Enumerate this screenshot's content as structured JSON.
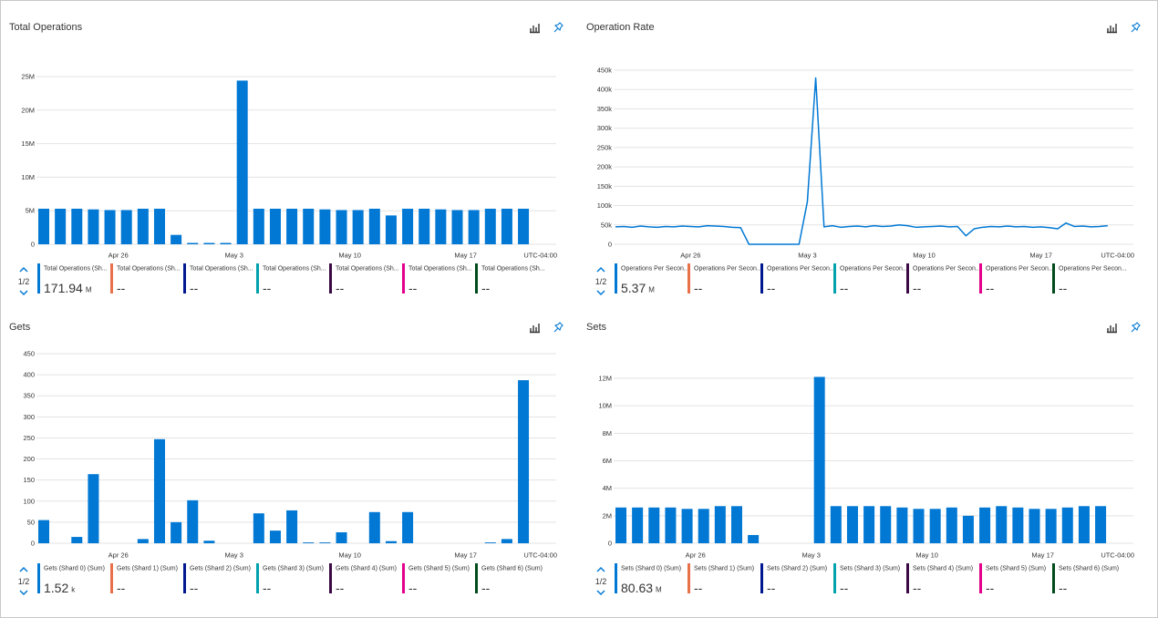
{
  "chart_data": [
    {
      "type": "bar",
      "title": "Total Operations",
      "timezone": "UTC-04:00",
      "legend_page": "1/2",
      "categories": [
        null,
        null,
        null,
        null,
        null,
        "Apr 26",
        null,
        null,
        null,
        null,
        null,
        null,
        "May 3",
        null,
        null,
        null,
        null,
        null,
        null,
        "May 10",
        null,
        null,
        null,
        null,
        null,
        null,
        "May 17",
        null,
        null,
        null
      ],
      "ylim": [
        0,
        25000000
      ],
      "yticks": [
        0,
        {
          "value": 5000000,
          "label": "5M"
        },
        {
          "value": 10000000,
          "label": "10M"
        },
        {
          "value": 15000000,
          "label": "15M"
        },
        {
          "value": 20000000,
          "label": "20M"
        },
        {
          "value": 25000000,
          "label": "25M"
        }
      ],
      "grid": true,
      "series": [
        {
          "name": "Total Operations (Sh...",
          "color": "#0078d4",
          "summary": 171.94,
          "unit": "M",
          "values": [
            5300000,
            5300000,
            5300000,
            5200000,
            5100000,
            5100000,
            5300000,
            5300000,
            1400000,
            200000,
            200000,
            200000,
            24400000,
            5300000,
            5300000,
            5300000,
            5300000,
            5200000,
            5100000,
            5100000,
            5300000,
            4300000,
            5300000,
            5300000,
            5200000,
            5100000,
            5100000,
            5300000,
            5300000,
            5300000
          ]
        },
        {
          "name": "Total Operations (Sh...",
          "color": "#e8704a",
          "summary": "--"
        },
        {
          "name": "Total Operations (Sh...",
          "color": "#00188f",
          "summary": "--"
        },
        {
          "name": "Total Operations (Sh...",
          "color": "#00a2ad",
          "summary": "--"
        },
        {
          "name": "Total Operations (Sh...",
          "color": "#3b0a45",
          "summary": "--"
        },
        {
          "name": "Total Operations (Sh...",
          "color": "#e3008c",
          "summary": "--"
        },
        {
          "name": "Total Operations (Sh...",
          "color": "#004b1c",
          "summary": "--"
        }
      ]
    },
    {
      "type": "line",
      "title": "Operation Rate",
      "timezone": "UTC-04:00",
      "legend_page": "1/2",
      "categories": [
        null,
        null,
        null,
        null,
        null,
        null,
        null,
        null,
        null,
        "Apr 26",
        null,
        null,
        null,
        null,
        null,
        null,
        null,
        null,
        null,
        null,
        null,
        null,
        null,
        "May 3",
        null,
        null,
        null,
        null,
        null,
        null,
        null,
        null,
        null,
        null,
        null,
        null,
        null,
        "May 10",
        null,
        null,
        null,
        null,
        null,
        null,
        null,
        null,
        null,
        null,
        null,
        null,
        null,
        "May 17",
        null,
        null,
        null,
        null,
        null,
        null,
        null,
        null
      ],
      "ylim": [
        0,
        450000
      ],
      "yticks": [
        0,
        {
          "value": 50000,
          "label": "50k"
        },
        {
          "value": 100000,
          "label": "100k"
        },
        {
          "value": 150000,
          "label": "150k"
        },
        {
          "value": 200000,
          "label": "200k"
        },
        {
          "value": 250000,
          "label": "250k"
        },
        {
          "value": 300000,
          "label": "300k"
        },
        {
          "value": 350000,
          "label": "350k"
        },
        {
          "value": 400000,
          "label": "400k"
        },
        {
          "value": 450000,
          "label": "450k"
        }
      ],
      "grid": true,
      "series": [
        {
          "name": "Operations Per Secon...",
          "color": "#0078d4",
          "summary": 5.37,
          "unit": "M",
          "values": [
            45000,
            46000,
            44000,
            47000,
            45000,
            44000,
            46000,
            45000,
            47000,
            46000,
            45000,
            48000,
            47000,
            46000,
            44000,
            43000,
            0,
            0,
            0,
            0,
            0,
            0,
            0,
            110000,
            430000,
            45000,
            48000,
            44000,
            46000,
            47000,
            45000,
            48000,
            46000,
            47000,
            50000,
            48000,
            44000,
            45000,
            46000,
            47000,
            45000,
            46000,
            22000,
            40000,
            44000,
            46000,
            45000,
            47000,
            45000,
            46000,
            44000,
            45000,
            43000,
            40000,
            55000,
            46000,
            47000,
            45000,
            46000,
            48000
          ]
        },
        {
          "name": "Operations Per Secon...",
          "color": "#e8704a",
          "summary": "--"
        },
        {
          "name": "Operations Per Secon...",
          "color": "#00188f",
          "summary": "--"
        },
        {
          "name": "Operations Per Secon...",
          "color": "#00a2ad",
          "summary": "--"
        },
        {
          "name": "Operations Per Secon...",
          "color": "#3b0a45",
          "summary": "--"
        },
        {
          "name": "Operations Per Secon...",
          "color": "#e3008c",
          "summary": "--"
        },
        {
          "name": "Operations Per Secon...",
          "color": "#004b1c",
          "summary": "--"
        }
      ]
    },
    {
      "type": "bar",
      "title": "Gets",
      "timezone": "UTC-04:00",
      "legend_page": "1/2",
      "categories": [
        null,
        null,
        null,
        null,
        null,
        "Apr 26",
        null,
        null,
        null,
        null,
        null,
        null,
        "May 3",
        null,
        null,
        null,
        null,
        null,
        null,
        "May 10",
        null,
        null,
        null,
        null,
        null,
        null,
        "May 17",
        null,
        null,
        null
      ],
      "ylim": [
        0,
        450
      ],
      "yticks": [
        0,
        50,
        100,
        150,
        200,
        250,
        300,
        350,
        400,
        450
      ],
      "grid": true,
      "series": [
        {
          "name": "Gets (Shard 0) (Sum)",
          "color": "#0078d4",
          "summary": 1.52,
          "unit": "k",
          "values": [
            55,
            null,
            15,
            164,
            null,
            null,
            10,
            247,
            50,
            102,
            6,
            null,
            null,
            71,
            30,
            78,
            2,
            2,
            26,
            null,
            74,
            5,
            74,
            null,
            null,
            null,
            null,
            2,
            10,
            387
          ]
        },
        {
          "name": "Gets (Shard 1) (Sum)",
          "color": "#e8704a",
          "summary": "--"
        },
        {
          "name": "Gets (Shard 2) (Sum)",
          "color": "#00188f",
          "summary": "--"
        },
        {
          "name": "Gets (Shard 3) (Sum)",
          "color": "#00a2ad",
          "summary": "--"
        },
        {
          "name": "Gets (Shard 4) (Sum)",
          "color": "#3b0a45",
          "summary": "--"
        },
        {
          "name": "Gets (Shard 5) (Sum)",
          "color": "#e3008c",
          "summary": "--"
        },
        {
          "name": "Gets (Shard 6) (Sum)",
          "color": "#004b1c",
          "summary": "--"
        }
      ]
    },
    {
      "type": "bar",
      "title": "Sets",
      "timezone": "UTC-04:00",
      "legend_page": "1/2",
      "categories": [
        null,
        null,
        null,
        null,
        null,
        "Apr 26",
        null,
        null,
        null,
        null,
        null,
        null,
        "May 3",
        null,
        null,
        null,
        null,
        null,
        null,
        "May 10",
        null,
        null,
        null,
        null,
        null,
        null,
        "May 17",
        null,
        null,
        null
      ],
      "ylim": [
        0,
        12000000
      ],
      "yticks": [
        0,
        {
          "value": 2000000,
          "label": "2M"
        },
        {
          "value": 4000000,
          "label": "4M"
        },
        {
          "value": 6000000,
          "label": "6M"
        },
        {
          "value": 8000000,
          "label": "8M"
        },
        {
          "value": 10000000,
          "label": "10M"
        },
        {
          "value": 12000000,
          "label": "12M"
        }
      ],
      "grid": true,
      "series": [
        {
          "name": "Sets (Shard 0) (Sum)",
          "color": "#0078d4",
          "summary": 80.63,
          "unit": "M",
          "values": [
            2600000,
            2600000,
            2600000,
            2600000,
            2500000,
            2500000,
            2700000,
            2700000,
            600000,
            null,
            null,
            null,
            12100000,
            2700000,
            2700000,
            2700000,
            2700000,
            2600000,
            2500000,
            2500000,
            2600000,
            2000000,
            2600000,
            2700000,
            2600000,
            2500000,
            2500000,
            2600000,
            2700000,
            2700000
          ]
        },
        {
          "name": "Sets (Shard 1) (Sum)",
          "color": "#e8704a",
          "summary": "--"
        },
        {
          "name": "Sets (Shard 2) (Sum)",
          "color": "#00188f",
          "summary": "--"
        },
        {
          "name": "Sets (Shard 3) (Sum)",
          "color": "#00a2ad",
          "summary": "--"
        },
        {
          "name": "Sets (Shard 4) (Sum)",
          "color": "#3b0a45",
          "summary": "--"
        },
        {
          "name": "Sets (Shard 5) (Sum)",
          "color": "#e3008c",
          "summary": "--"
        },
        {
          "name": "Sets (Shard 6) (Sum)",
          "color": "#004b1c",
          "summary": "--"
        }
      ]
    }
  ]
}
